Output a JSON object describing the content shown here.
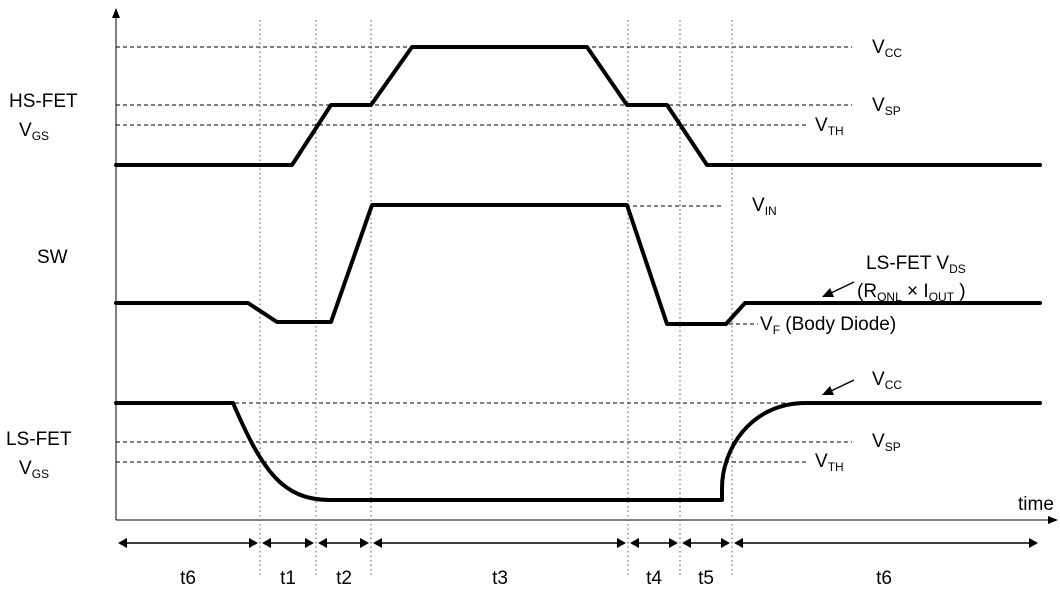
{
  "signals": {
    "hs_fet_vgs": {
      "line1": "HS-FET",
      "line2_main": "V",
      "line2_sub": "GS"
    },
    "sw": {
      "label": "SW"
    },
    "ls_fet_vgs": {
      "line1": "LS-FET",
      "line2_main": "V",
      "line2_sub": "GS"
    }
  },
  "levels": {
    "vcc_top": {
      "main": "V",
      "sub": "CC"
    },
    "vsp_top": {
      "main": "V",
      "sub": "SP"
    },
    "vth_top": {
      "main": "V",
      "sub": "TH"
    },
    "vin": {
      "main": "V",
      "sub": "IN"
    },
    "ls_vds": {
      "main": "LS-FET V",
      "sub": "DS"
    },
    "ronl": {
      "open": "(R",
      "r_sub": "ONL",
      "times": " × I",
      "i_sub": "OUT",
      "close": " )"
    },
    "vf": {
      "main": "V",
      "sub": "F",
      "suffix": " (Body Diode)"
    },
    "vcc_bottom": {
      "main": "V",
      "sub": "CC"
    },
    "vsp_bottom": {
      "main": "V",
      "sub": "SP"
    },
    "vth_bottom": {
      "main": "V",
      "sub": "TH"
    }
  },
  "axis": {
    "x_label": "time"
  },
  "intervals": [
    "t6",
    "t1",
    "t2",
    "t3",
    "t4",
    "t5",
    "t6"
  ]
}
